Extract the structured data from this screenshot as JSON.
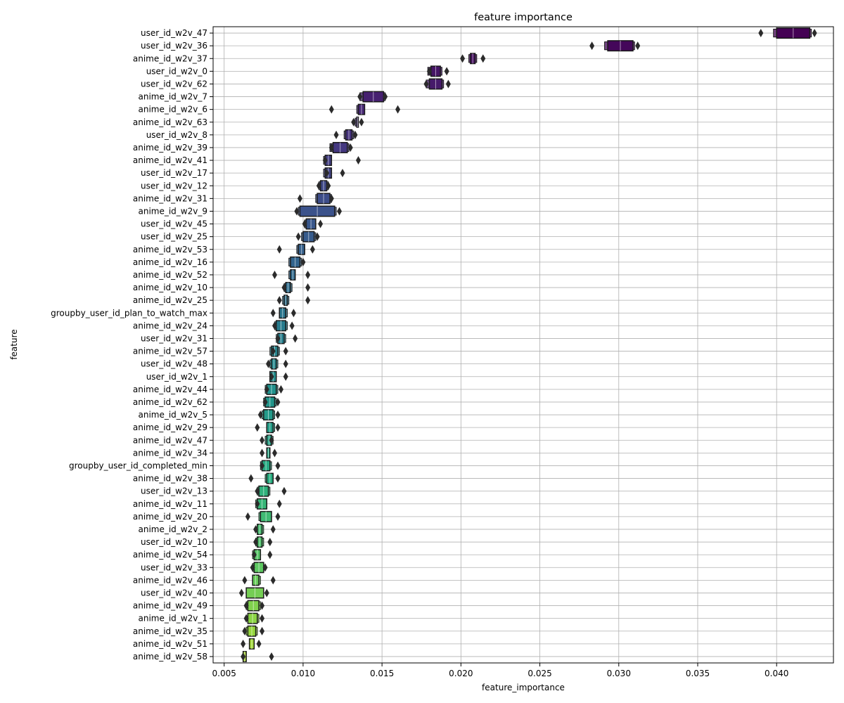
{
  "chart_data": {
    "type": "boxen",
    "title": "feature importance",
    "xlabel": "feature_importance",
    "ylabel": "feature",
    "xlim": [
      0.0043,
      0.0436
    ],
    "xticks": [
      0.005,
      0.01,
      0.015,
      0.02,
      0.025,
      0.03,
      0.035,
      0.04
    ],
    "xtick_labels": [
      "0.005",
      "0.010",
      "0.015",
      "0.020",
      "0.025",
      "0.030",
      "0.035",
      "0.040"
    ],
    "grid": true,
    "palette": "viridis",
    "palette_start": "#440154",
    "palette_end": "#bddf26",
    "categories": [
      {
        "name": "user_id_w2v_47",
        "q1": 0.04,
        "q3": 0.0421,
        "lo": 0.0398,
        "hi": 0.0422,
        "outliers": [
          0.039,
          0.0424
        ]
      },
      {
        "name": "user_id_w2v_36",
        "q1": 0.0293,
        "q3": 0.0309,
        "lo": 0.0291,
        "hi": 0.031,
        "outliers": [
          0.0283,
          0.0312
        ]
      },
      {
        "name": "anime_id_w2v_37",
        "q1": 0.0206,
        "q3": 0.0209,
        "lo": 0.0205,
        "hi": 0.021,
        "outliers": [
          0.0201,
          0.0214
        ]
      },
      {
        "name": "user_id_w2v_0",
        "q1": 0.0181,
        "q3": 0.0187,
        "lo": 0.0179,
        "hi": 0.0188,
        "outliers": [
          0.018,
          0.0191
        ]
      },
      {
        "name": "user_id_w2v_62",
        "q1": 0.018,
        "q3": 0.0188,
        "lo": 0.0178,
        "hi": 0.0189,
        "outliers": [
          0.0178,
          0.0192
        ]
      },
      {
        "name": "anime_id_w2v_7",
        "q1": 0.0138,
        "q3": 0.0151,
        "lo": 0.0136,
        "hi": 0.0152,
        "outliers": [
          0.0136,
          0.0152
        ]
      },
      {
        "name": "anime_id_w2v_6",
        "q1": 0.0135,
        "q3": 0.0139,
        "lo": 0.0134,
        "hi": 0.0139,
        "outliers": [
          0.0118,
          0.016
        ]
      },
      {
        "name": "anime_id_w2v_63",
        "q1": 0.0134,
        "q3": 0.0135,
        "lo": 0.0133,
        "hi": 0.0135,
        "outliers": [
          0.0132,
          0.0137
        ]
      },
      {
        "name": "user_id_w2v_8",
        "q1": 0.0127,
        "q3": 0.0131,
        "lo": 0.0126,
        "hi": 0.0132,
        "outliers": [
          0.0121,
          0.0133
        ]
      },
      {
        "name": "anime_id_w2v_39",
        "q1": 0.0119,
        "q3": 0.0128,
        "lo": 0.0117,
        "hi": 0.0129,
        "outliers": [
          0.0118,
          0.013
        ]
      },
      {
        "name": "anime_id_w2v_41",
        "q1": 0.0114,
        "q3": 0.0118,
        "lo": 0.0113,
        "hi": 0.0118,
        "outliers": [
          0.0114,
          0.0135
        ]
      },
      {
        "name": "user_id_w2v_17",
        "q1": 0.0114,
        "q3": 0.0118,
        "lo": 0.0113,
        "hi": 0.0118,
        "outliers": [
          0.0115,
          0.0125
        ]
      },
      {
        "name": "user_id_w2v_12",
        "q1": 0.0111,
        "q3": 0.0115,
        "lo": 0.011,
        "hi": 0.0116,
        "outliers": [
          0.011,
          0.0116
        ]
      },
      {
        "name": "anime_id_w2v_31",
        "q1": 0.0109,
        "q3": 0.0117,
        "lo": 0.0108,
        "hi": 0.0118,
        "outliers": [
          0.0098,
          0.0118
        ]
      },
      {
        "name": "anime_id_w2v_9",
        "q1": 0.0098,
        "q3": 0.012,
        "lo": 0.0097,
        "hi": 0.0121,
        "outliers": [
          0.0096,
          0.0123
        ]
      },
      {
        "name": "user_id_w2v_45",
        "q1": 0.0102,
        "q3": 0.0108,
        "lo": 0.0101,
        "hi": 0.0108,
        "outliers": [
          0.0101,
          0.0111
        ]
      },
      {
        "name": "user_id_w2v_25",
        "q1": 0.01,
        "q3": 0.0107,
        "lo": 0.0099,
        "hi": 0.0108,
        "outliers": [
          0.0097,
          0.0109
        ]
      },
      {
        "name": "anime_id_w2v_53",
        "q1": 0.0097,
        "q3": 0.0101,
        "lo": 0.0096,
        "hi": 0.0101,
        "outliers": [
          0.0085,
          0.0106
        ]
      },
      {
        "name": "anime_id_w2v_16",
        "q1": 0.0092,
        "q3": 0.0098,
        "lo": 0.0091,
        "hi": 0.0099,
        "outliers": [
          0.01
        ]
      },
      {
        "name": "anime_id_w2v_52",
        "q1": 0.0092,
        "q3": 0.0095,
        "lo": 0.0091,
        "hi": 0.0095,
        "outliers": [
          0.0082,
          0.0103
        ]
      },
      {
        "name": "anime_id_w2v_10",
        "q1": 0.0089,
        "q3": 0.0092,
        "lo": 0.0088,
        "hi": 0.0093,
        "outliers": [
          0.0088,
          0.0103
        ]
      },
      {
        "name": "anime_id_w2v_25",
        "q1": 0.0088,
        "q3": 0.009,
        "lo": 0.0087,
        "hi": 0.0091,
        "outliers": [
          0.0085,
          0.0103
        ]
      },
      {
        "name": "groupby_user_id_plan_to_watch_max",
        "q1": 0.0085,
        "q3": 0.0089,
        "lo": 0.0085,
        "hi": 0.009,
        "outliers": [
          0.0081,
          0.0094
        ]
      },
      {
        "name": "anime_id_w2v_24",
        "q1": 0.0083,
        "q3": 0.0089,
        "lo": 0.0082,
        "hi": 0.009,
        "outliers": [
          0.0082,
          0.0093
        ]
      },
      {
        "name": "user_id_w2v_31",
        "q1": 0.0084,
        "q3": 0.0088,
        "lo": 0.0083,
        "hi": 0.0089,
        "outliers": [
          0.0084,
          0.0095
        ]
      },
      {
        "name": "anime_id_w2v_57",
        "q1": 0.008,
        "q3": 0.0084,
        "lo": 0.0079,
        "hi": 0.0085,
        "outliers": [
          0.0081,
          0.0089
        ]
      },
      {
        "name": "user_id_w2v_48",
        "q1": 0.008,
        "q3": 0.0083,
        "lo": 0.0079,
        "hi": 0.0084,
        "outliers": [
          0.0078,
          0.0089
        ]
      },
      {
        "name": "user_id_w2v_1",
        "q1": 0.0079,
        "q3": 0.0083,
        "lo": 0.0079,
        "hi": 0.0083,
        "outliers": [
          0.008,
          0.0089
        ]
      },
      {
        "name": "anime_id_w2v_44",
        "q1": 0.0077,
        "q3": 0.0083,
        "lo": 0.0076,
        "hi": 0.0084,
        "outliers": [
          0.0077,
          0.0086
        ]
      },
      {
        "name": "anime_id_w2v_62",
        "q1": 0.0076,
        "q3": 0.0082,
        "lo": 0.0075,
        "hi": 0.0083,
        "outliers": [
          0.0076,
          0.0084
        ]
      },
      {
        "name": "anime_id_w2v_5",
        "q1": 0.0075,
        "q3": 0.0081,
        "lo": 0.0074,
        "hi": 0.0082,
        "outliers": [
          0.0073,
          0.0084
        ]
      },
      {
        "name": "anime_id_w2v_29",
        "q1": 0.0077,
        "q3": 0.0081,
        "lo": 0.0077,
        "hi": 0.0082,
        "outliers": [
          0.0071,
          0.0084
        ]
      },
      {
        "name": "anime_id_w2v_47",
        "q1": 0.0077,
        "q3": 0.008,
        "lo": 0.0076,
        "hi": 0.0081,
        "outliers": [
          0.0074,
          0.008
        ]
      },
      {
        "name": "anime_id_w2v_34",
        "q1": 0.0077,
        "q3": 0.0079,
        "lo": 0.0077,
        "hi": 0.0079,
        "outliers": [
          0.0074,
          0.0082
        ]
      },
      {
        "name": "groupby_user_id_completed_min",
        "q1": 0.0074,
        "q3": 0.0079,
        "lo": 0.0073,
        "hi": 0.008,
        "outliers": [
          0.0074,
          0.0084
        ]
      },
      {
        "name": "anime_id_w2v_38",
        "q1": 0.0077,
        "q3": 0.0081,
        "lo": 0.0076,
        "hi": 0.0081,
        "outliers": [
          0.0067,
          0.0084
        ]
      },
      {
        "name": "user_id_w2v_13",
        "q1": 0.0072,
        "q3": 0.0078,
        "lo": 0.0071,
        "hi": 0.0079,
        "outliers": [
          0.0071,
          0.0088
        ]
      },
      {
        "name": "anime_id_w2v_11",
        "q1": 0.0071,
        "q3": 0.0077,
        "lo": 0.007,
        "hi": 0.0077,
        "outliers": [
          0.0071,
          0.0085
        ]
      },
      {
        "name": "anime_id_w2v_20",
        "q1": 0.0073,
        "q3": 0.008,
        "lo": 0.0072,
        "hi": 0.008,
        "outliers": [
          0.0065,
          0.0084
        ]
      },
      {
        "name": "anime_id_w2v_2",
        "q1": 0.0071,
        "q3": 0.0074,
        "lo": 0.0071,
        "hi": 0.0075,
        "outliers": [
          0.007,
          0.0081
        ]
      },
      {
        "name": "user_id_w2v_10",
        "q1": 0.0071,
        "q3": 0.0074,
        "lo": 0.007,
        "hi": 0.0075,
        "outliers": [
          0.007,
          0.0079
        ]
      },
      {
        "name": "anime_id_w2v_54",
        "q1": 0.0069,
        "q3": 0.0073,
        "lo": 0.0068,
        "hi": 0.0073,
        "outliers": [
          0.0069,
          0.0079
        ]
      },
      {
        "name": "user_id_w2v_33",
        "q1": 0.0069,
        "q3": 0.0075,
        "lo": 0.0068,
        "hi": 0.0075,
        "outliers": [
          0.0068,
          0.0076
        ]
      },
      {
        "name": "anime_id_w2v_46",
        "q1": 0.0068,
        "q3": 0.0072,
        "lo": 0.0068,
        "hi": 0.0073,
        "outliers": [
          0.0063,
          0.0081
        ]
      },
      {
        "name": "user_id_w2v_40",
        "q1": 0.0064,
        "q3": 0.0075,
        "lo": 0.0064,
        "hi": 0.0075,
        "outliers": [
          0.0061,
          0.0077
        ]
      },
      {
        "name": "anime_id_w2v_49",
        "q1": 0.0065,
        "q3": 0.0072,
        "lo": 0.0064,
        "hi": 0.0073,
        "outliers": [
          0.0064,
          0.0074
        ]
      },
      {
        "name": "anime_id_w2v_1",
        "q1": 0.0065,
        "q3": 0.0071,
        "lo": 0.0065,
        "hi": 0.0072,
        "outliers": [
          0.0064,
          0.0074
        ]
      },
      {
        "name": "anime_id_w2v_35",
        "q1": 0.0065,
        "q3": 0.007,
        "lo": 0.0064,
        "hi": 0.0071,
        "outliers": [
          0.0063,
          0.0074
        ]
      },
      {
        "name": "anime_id_w2v_51",
        "q1": 0.0066,
        "q3": 0.0069,
        "lo": 0.0066,
        "hi": 0.0069,
        "outliers": [
          0.0062,
          0.0072
        ]
      },
      {
        "name": "anime_id_w2v_58",
        "q1": 0.0062,
        "q3": 0.0064,
        "lo": 0.0062,
        "hi": 0.0064,
        "outliers": [
          0.0062,
          0.008
        ]
      }
    ]
  }
}
